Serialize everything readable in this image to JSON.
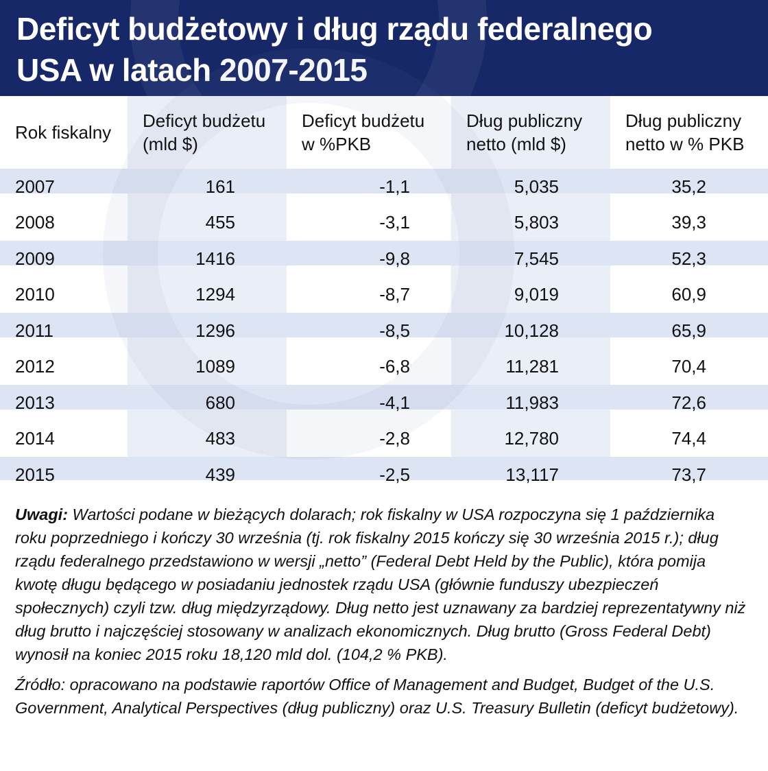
{
  "title_line1": "Deficyt budżetowy i dług rządu federalnego",
  "title_line2": "USA w latach 2007-2015",
  "columns": [
    {
      "line1": "Rok fiskalny",
      "line2": ""
    },
    {
      "line1": "Deficyt budżetu",
      "line2": "(mld $)"
    },
    {
      "line1": "Deficyt budżetu",
      "line2": "w %PKB"
    },
    {
      "line1": "Dług publiczny",
      "line2": "netto (mld $)"
    },
    {
      "line1": "Dług publiczny",
      "line2": "netto w % PKB"
    }
  ],
  "rows": [
    [
      "2007",
      "161",
      "-1,1",
      "5,035",
      "35,2"
    ],
    [
      "2008",
      "455",
      "-3,1",
      "5,803",
      "39,3"
    ],
    [
      "2009",
      "1416",
      "-9,8",
      "7,545",
      "52,3"
    ],
    [
      "2010",
      "1294",
      "-8,7",
      "9,019",
      "60,9"
    ],
    [
      "2011",
      "1296",
      "-8,5",
      "10,128",
      "65,9"
    ],
    [
      "2012",
      "1089",
      "-6,8",
      "11,281",
      "70,4"
    ],
    [
      "2013",
      "680",
      "-4,1",
      "11,983",
      "72,6"
    ],
    [
      "2014",
      "483",
      "-2,8",
      "12,780",
      "74,4"
    ],
    [
      "2015",
      "439",
      "-2,5",
      "13,117",
      "73,7"
    ]
  ],
  "notes": {
    "label": "Uwagi:",
    "text": " Wartości podane w bieżących dolarach; rok fiskalny w USA rozpoczyna się 1 października roku poprzedniego i kończy 30 września (tj. rok fiskalny 2015 kończy się 30 września 2015 r.); dług rządu federalnego przedstawiono w wersji „netto” (Federal Debt Held by the Public), która pomija kwotę długu będącego w posiadaniu jednostek rządu USA (głównie funduszy ubezpieczeń społecznych) czyli tzw. dług międzyrządowy. Dług netto jest uznawany za bardziej reprezentatywny niż dług brutto i najczęściej stosowany w analizach ekonomicznych. Dług brutto (Gross Federal Debt) wynosił na koniec 2015 roku 18,120 mld dol. (104,2 % PKB).",
    "source": "Źródło: opracowano na podstawie raportów Office of Management and Budget, Budget of the U.S. Government, Analytical Perspectives (dług publiczny) oraz U.S. Treasury Bulletin (deficyt budżetowy)."
  },
  "colors": {
    "header_bg": "#172868",
    "stripe": "#dde4f3",
    "band": "#eaeef7"
  }
}
